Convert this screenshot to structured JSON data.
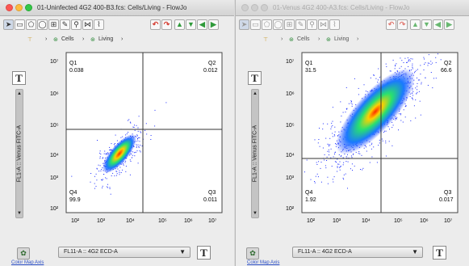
{
  "left": {
    "title": "01-Uninfected 4G2 400-B3.fcs: Cells/Living - FlowJo",
    "breadcrumb": {
      "cells": "Cells",
      "living": "Living"
    },
    "ylabel": "FL1-A :: Venus FITC-A",
    "x_axis_select": "FL11-A :: 4G2 ECD-A",
    "quadrants": {
      "q1_name": "Q1",
      "q1_value": "0.038",
      "q2_name": "Q2",
      "q2_value": "0.012",
      "q3_name": "Q3",
      "q3_value": "0.011",
      "q4_name": "Q4",
      "q4_value": "99.9"
    },
    "bottom_link": "Color Map Axis"
  },
  "right": {
    "title": "01-Venus 4G2 400-A3.fcs: Cells/Living - FlowJo",
    "breadcrumb": {
      "cells": "Cells",
      "living": "Living"
    },
    "ylabel": "FL1-A :: Venus FITC-A",
    "x_axis_select": "FL11-A :: 4G2 ECD-A",
    "quadrants": {
      "q1_name": "Q1",
      "q1_value": "31.5",
      "q2_name": "Q2",
      "q2_value": "66.6",
      "q3_name": "Q3",
      "q3_value": "0.017",
      "q4_name": "Q4",
      "q4_value": "1.92"
    },
    "bottom_link": "Color Map Axis"
  },
  "axes": {
    "x_ticks": [
      "10²",
      "10³",
      "10⁴",
      "10⁵",
      "10⁶",
      "10⁷"
    ],
    "y_ticks": [
      "10⁷",
      "10⁶",
      "10⁵",
      "10⁴",
      "10³",
      "10²"
    ],
    "t_button": "T"
  },
  "colors": {
    "accent_red": "#d43a2f",
    "accent_green": "#2f9a3a",
    "density_low": "#1030ff",
    "density_high": "#ff2000"
  },
  "icons": [
    "select-arrow-icon",
    "rectangle-gate-icon",
    "polygon-gate-icon",
    "ellipse-gate-icon",
    "quadrant-gate-icon",
    "pencil-icon",
    "magic-wand-icon",
    "undo-icon",
    "redo-icon",
    "up-arrow-icon",
    "down-arrow-icon",
    "back-arrow-icon",
    "forward-arrow-icon",
    "color-map-icon"
  ]
}
